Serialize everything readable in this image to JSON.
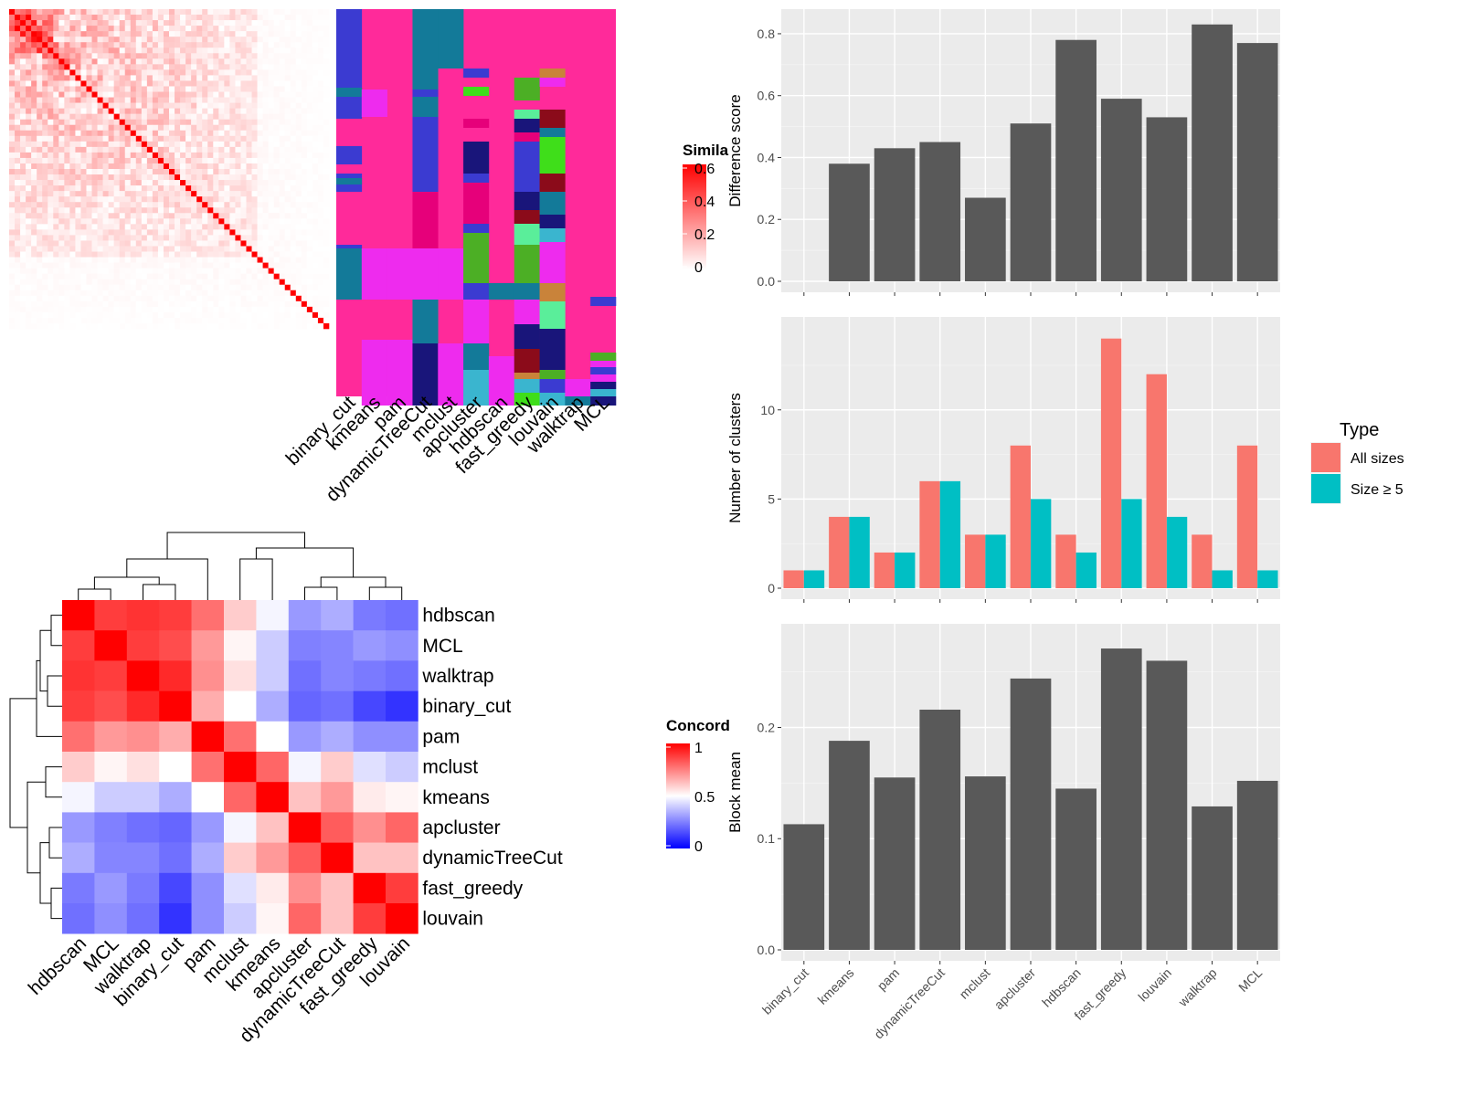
{
  "charts": {
    "similarity_heatmap": {
      "type": "heatmap",
      "legend_title": "Simila",
      "legend_ticks": [
        "0.6",
        "0.4",
        "0.2",
        "0"
      ],
      "color_low": "#ffffff",
      "color_high": "#ff0000",
      "n": 58
    },
    "partition_heatmap": {
      "type": "heatmap",
      "methods": [
        "binary_cut",
        "kmeans",
        "pam",
        "dynamicTreeCut",
        "mclust",
        "apcluster",
        "hdbscan",
        "fast_greedy",
        "louvain",
        "walktrap",
        "MCL"
      ],
      "background_color": "#ff2a9a"
    },
    "concordance_heatmap": {
      "type": "heatmap",
      "legend_title": "Concord",
      "legend_ticks": [
        "1",
        "0.5",
        "0"
      ],
      "row_labels": [
        "hdbscan",
        "MCL",
        "walktrap",
        "binary_cut",
        "pam",
        "mclust",
        "kmeans",
        "apcluster",
        "dynamicTreeCut",
        "fast_greedy",
        "louvain"
      ],
      "col_labels": [
        "hdbscan",
        "MCL",
        "walktrap",
        "binary_cut",
        "pam",
        "mclust",
        "kmeans",
        "apcluster",
        "dynamicTreeCut",
        "fast_greedy",
        "louvain"
      ],
      "matrix": [
        [
          1.0,
          0.88,
          0.9,
          0.88,
          0.78,
          0.6,
          0.48,
          0.3,
          0.34,
          0.24,
          0.22
        ],
        [
          0.88,
          1.0,
          0.88,
          0.85,
          0.7,
          0.52,
          0.4,
          0.25,
          0.26,
          0.3,
          0.28
        ],
        [
          0.9,
          0.88,
          1.0,
          0.92,
          0.72,
          0.56,
          0.4,
          0.22,
          0.26,
          0.24,
          0.22
        ],
        [
          0.88,
          0.85,
          0.92,
          1.0,
          0.66,
          0.5,
          0.34,
          0.2,
          0.22,
          0.14,
          0.1
        ],
        [
          0.78,
          0.7,
          0.72,
          0.66,
          1.0,
          0.78,
          0.5,
          0.3,
          0.34,
          0.28,
          0.28
        ],
        [
          0.6,
          0.52,
          0.56,
          0.5,
          0.78,
          1.0,
          0.8,
          0.48,
          0.6,
          0.44,
          0.4
        ],
        [
          0.48,
          0.4,
          0.4,
          0.34,
          0.5,
          0.8,
          1.0,
          0.62,
          0.7,
          0.54,
          0.52
        ],
        [
          0.3,
          0.25,
          0.22,
          0.2,
          0.3,
          0.48,
          0.62,
          1.0,
          0.82,
          0.72,
          0.8
        ],
        [
          0.34,
          0.26,
          0.26,
          0.22,
          0.34,
          0.6,
          0.7,
          0.82,
          1.0,
          0.62,
          0.62
        ],
        [
          0.24,
          0.3,
          0.24,
          0.14,
          0.28,
          0.44,
          0.54,
          0.72,
          0.62,
          1.0,
          0.88
        ],
        [
          0.22,
          0.28,
          0.22,
          0.1,
          0.28,
          0.4,
          0.52,
          0.8,
          0.62,
          0.88,
          1.0
        ]
      ],
      "color_low": "#0000ff",
      "color_mid": "#ffffff",
      "color_high": "#ff0000"
    },
    "difference_score": {
      "type": "bar",
      "ylabel": "Difference score",
      "categories": [
        "binary_cut",
        "kmeans",
        "pam",
        "dynamicTreeCut",
        "mclust",
        "apcluster",
        "hdbscan",
        "fast_greedy",
        "louvain",
        "walktrap",
        "MCL"
      ],
      "values": [
        0,
        0.38,
        0.43,
        0.45,
        0.27,
        0.51,
        0.78,
        0.59,
        0.53,
        0.83,
        0.77
      ],
      "yticks": [
        "0.0",
        "0.2",
        "0.4",
        "0.6",
        "0.8"
      ],
      "ylim": [
        0,
        0.85
      ],
      "bar_color": "#595959"
    },
    "num_clusters": {
      "type": "bar",
      "ylabel": "Number of clusters",
      "categories": [
        "binary_cut",
        "kmeans",
        "pam",
        "dynamicTreeCut",
        "mclust",
        "apcluster",
        "hdbscan",
        "fast_greedy",
        "louvain",
        "walktrap",
        "MCL"
      ],
      "series": [
        {
          "name": "All sizes",
          "color": "#f8766d",
          "values": [
            1,
            4,
            2,
            6,
            3,
            8,
            3,
            14,
            12,
            3,
            8
          ]
        },
        {
          "name": "Size ≥ 5",
          "color": "#00bfc4",
          "values": [
            1,
            4,
            2,
            6,
            3,
            5,
            2,
            5,
            4,
            1,
            1
          ]
        }
      ],
      "yticks": [
        "0",
        "5",
        "10"
      ],
      "ylim": [
        0,
        14.7
      ],
      "legend_title": "Type"
    },
    "block_mean": {
      "type": "bar",
      "ylabel": "Block mean",
      "categories": [
        "binary_cut",
        "kmeans",
        "pam",
        "dynamicTreeCut",
        "mclust",
        "apcluster",
        "hdbscan",
        "fast_greedy",
        "louvain",
        "walktrap",
        "MCL"
      ],
      "values": [
        0.113,
        0.188,
        0.155,
        0.216,
        0.156,
        0.244,
        0.145,
        0.271,
        0.26,
        0.129,
        0.152
      ],
      "yticks": [
        "0.0",
        "0.1",
        "0.2"
      ],
      "ylim": [
        0,
        0.285
      ],
      "bar_color": "#595959"
    }
  }
}
